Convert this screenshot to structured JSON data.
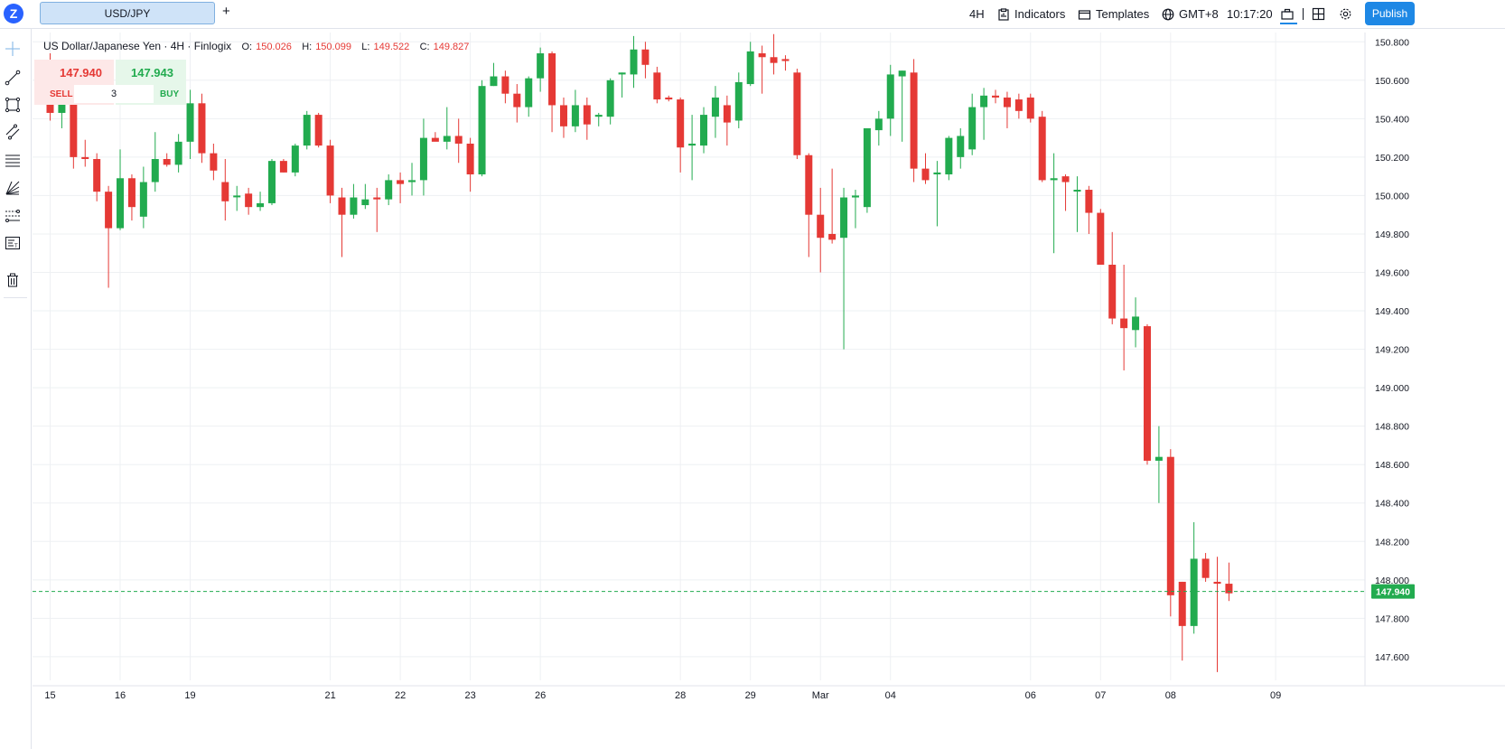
{
  "app": {
    "tab_label": "USD/JPY",
    "add_tab": "+"
  },
  "toolbar": {
    "interval": "4H",
    "indicators": "Indicators",
    "templates": "Templates",
    "timezone": "GMT+8",
    "clock": "10:17:20",
    "publish": "Publish"
  },
  "sidebar": {
    "tools": [
      "crosshair-icon",
      "trend-line-icon",
      "rectangle-icon",
      "parallel-channel-icon",
      "fib-retracement-icon",
      "gann-fan-icon",
      "pitchfork-icon",
      "text-note-icon",
      "trash-icon"
    ]
  },
  "legend": {
    "symbol": "US Dollar/Japanese Yen · 4H · Finlogix",
    "open_label": "O:",
    "open": "150.026",
    "high_label": "H:",
    "high": "150.099",
    "low_label": "L:",
    "low": "149.522",
    "close_label": "C:",
    "close": "149.827"
  },
  "trade": {
    "sell_price": "147.940",
    "buy_price": "147.943",
    "sell_label": "SELL",
    "buy_label": "BUY",
    "quantity": "3"
  },
  "colors": {
    "up": "#22ab4f",
    "down": "#e53935",
    "accent": "#1e88e5",
    "price_line": "#22ab4f",
    "grid": "#eef0f3"
  },
  "chart_data": {
    "type": "candlestick",
    "ylim": [
      147.5,
      150.85
    ],
    "y_ticks": [
      "150.800",
      "150.600",
      "150.400",
      "150.200",
      "150.000",
      "149.800",
      "149.600",
      "149.400",
      "149.200",
      "149.000",
      "148.800",
      "148.600",
      "148.400",
      "148.200",
      "148.000",
      "147.800",
      "147.600"
    ],
    "x_ticks": [
      "15",
      "16",
      "19",
      "21",
      "22",
      "23",
      "26",
      "28",
      "29",
      "Mar",
      "04",
      "06",
      "07",
      "08",
      "09"
    ],
    "last_price": "147.940",
    "grid": true,
    "candles": [
      [
        "2024-02-15 00:00",
        150.7,
        150.74,
        150.39,
        150.43
      ],
      [
        "2024-02-15 04:00",
        150.43,
        150.6,
        150.35,
        150.55
      ],
      [
        "2024-02-15 08:00",
        150.55,
        150.6,
        150.14,
        150.2
      ],
      [
        "2024-02-15 12:00",
        150.2,
        150.29,
        150.15,
        150.19
      ],
      [
        "2024-02-15 16:00",
        150.19,
        150.22,
        149.97,
        150.02
      ],
      [
        "2024-02-15 20:00",
        150.02,
        150.05,
        149.52,
        149.83
      ],
      [
        "2024-02-16 00:00",
        149.83,
        150.24,
        149.82,
        150.09
      ],
      [
        "2024-02-16 04:00",
        150.09,
        150.11,
        149.87,
        149.94
      ],
      [
        "2024-02-16 08:00",
        149.89,
        150.15,
        149.83,
        150.07
      ],
      [
        "2024-02-16 12:00",
        150.07,
        150.33,
        150.02,
        150.19
      ],
      [
        "2024-02-16 16:00",
        150.19,
        150.22,
        150.15,
        150.16
      ],
      [
        "2024-02-16 20:00",
        150.16,
        150.32,
        150.12,
        150.28
      ],
      [
        "2024-02-19 00:00",
        150.28,
        150.55,
        150.19,
        150.48
      ],
      [
        "2024-02-19 04:00",
        150.48,
        150.53,
        150.17,
        150.22
      ],
      [
        "2024-02-19 08:00",
        150.22,
        150.27,
        150.08,
        150.13
      ],
      [
        "2024-02-19 12:00",
        150.07,
        150.19,
        149.87,
        149.97
      ],
      [
        "2024-02-19 16:00",
        150.0,
        150.05,
        149.92,
        150.0
      ],
      [
        "2024-02-19 20:00",
        150.01,
        150.04,
        149.9,
        149.94
      ],
      [
        "2024-02-20 00:00",
        149.94,
        150.02,
        149.92,
        149.96
      ],
      [
        "2024-02-20 04:00",
        149.96,
        150.19,
        149.95,
        150.18
      ],
      [
        "2024-02-20 08:00",
        150.18,
        150.19,
        150.12,
        150.12
      ],
      [
        "2024-02-20 12:00",
        150.12,
        150.27,
        150.1,
        150.26
      ],
      [
        "2024-02-20 16:00",
        150.26,
        150.44,
        150.24,
        150.42
      ],
      [
        "2024-02-20 20:00",
        150.42,
        150.43,
        150.25,
        150.26
      ],
      [
        "2024-02-21 00:00",
        150.26,
        150.29,
        149.96,
        150.0
      ],
      [
        "2024-02-21 04:00",
        149.99,
        150.04,
        149.68,
        149.9
      ],
      [
        "2024-02-21 08:00",
        149.9,
        150.06,
        149.88,
        149.99
      ],
      [
        "2024-02-21 12:00",
        149.95,
        150.06,
        149.93,
        149.98
      ],
      [
        "2024-02-21 16:00",
        149.99,
        150.04,
        149.81,
        149.98
      ],
      [
        "2024-02-21 20:00",
        149.98,
        150.11,
        149.95,
        150.08
      ],
      [
        "2024-02-22 00:00",
        150.08,
        150.12,
        149.96,
        150.06
      ],
      [
        "2024-02-22 04:00",
        150.07,
        150.17,
        150.0,
        150.08
      ],
      [
        "2024-02-22 08:00",
        150.08,
        150.4,
        150.0,
        150.3
      ],
      [
        "2024-02-22 12:00",
        150.3,
        150.33,
        150.29,
        150.28
      ],
      [
        "2024-02-22 16:00",
        150.28,
        150.46,
        150.24,
        150.31
      ],
      [
        "2024-02-22 20:00",
        150.31,
        150.4,
        150.17,
        150.27
      ],
      [
        "2024-02-23 00:00",
        150.27,
        150.3,
        150.02,
        150.11
      ],
      [
        "2024-02-23 04:00",
        150.11,
        150.6,
        150.1,
        150.57
      ],
      [
        "2024-02-23 08:00",
        150.57,
        150.69,
        150.57,
        150.62
      ],
      [
        "2024-02-23 12:00",
        150.62,
        150.65,
        150.48,
        150.53
      ],
      [
        "2024-02-23 16:00",
        150.53,
        150.58,
        150.38,
        150.46
      ],
      [
        "2024-02-23 20:00",
        150.46,
        150.62,
        150.41,
        150.61
      ],
      [
        "2024-02-26 00:00",
        150.61,
        150.77,
        150.54,
        150.74
      ],
      [
        "2024-02-26 04:00",
        150.74,
        150.75,
        150.33,
        150.47
      ],
      [
        "2024-02-26 08:00",
        150.47,
        150.51,
        150.3,
        150.36
      ],
      [
        "2024-02-26 12:00",
        150.36,
        150.55,
        150.33,
        150.47
      ],
      [
        "2024-02-26 16:00",
        150.47,
        150.51,
        150.29,
        150.37
      ],
      [
        "2024-02-26 20:00",
        150.41,
        150.43,
        150.36,
        150.42
      ],
      [
        "2024-02-27 00:00",
        150.41,
        150.61,
        150.37,
        150.6
      ],
      [
        "2024-02-27 04:00",
        150.63,
        150.64,
        150.51,
        150.64
      ],
      [
        "2024-02-27 08:00",
        150.63,
        150.83,
        150.56,
        150.76
      ],
      [
        "2024-02-27 12:00",
        150.76,
        150.8,
        150.61,
        150.68
      ],
      [
        "2024-02-27 16:00",
        150.64,
        150.67,
        150.48,
        150.5
      ],
      [
        "2024-02-27 20:00",
        150.51,
        150.52,
        150.49,
        150.5
      ],
      [
        "2024-02-28 00:00",
        150.5,
        150.51,
        150.12,
        150.25
      ],
      [
        "2024-02-28 04:00",
        150.26,
        150.42,
        150.08,
        150.27
      ],
      [
        "2024-02-28 08:00",
        150.26,
        150.46,
        150.22,
        150.42
      ],
      [
        "2024-02-28 12:00",
        150.41,
        150.57,
        150.3,
        150.51
      ],
      [
        "2024-02-28 16:00",
        150.47,
        150.52,
        150.26,
        150.38
      ],
      [
        "2024-02-28 20:00",
        150.39,
        150.64,
        150.35,
        150.59
      ],
      [
        "2024-02-29 00:00",
        150.58,
        150.8,
        150.57,
        150.75
      ],
      [
        "2024-02-29 04:00",
        150.74,
        150.78,
        150.53,
        150.72
      ],
      [
        "2024-02-29 08:00",
        150.72,
        150.84,
        150.63,
        150.69
      ],
      [
        "2024-02-29 12:00",
        150.71,
        150.73,
        150.65,
        150.7
      ],
      [
        "2024-02-29 16:00",
        150.64,
        150.66,
        150.19,
        150.21
      ],
      [
        "2024-02-29 20:00",
        150.21,
        150.22,
        149.68,
        149.9
      ],
      [
        "2024-03-01 00:00",
        149.9,
        150.04,
        149.6,
        149.78
      ],
      [
        "2024-03-01 04:00",
        149.8,
        150.14,
        149.75,
        149.77
      ],
      [
        "2024-03-01 08:00",
        149.78,
        150.04,
        149.2,
        149.99
      ],
      [
        "2024-03-01 12:00",
        149.99,
        150.03,
        149.83,
        150.0
      ],
      [
        "2024-03-01 16:00",
        149.94,
        150.35,
        149.91,
        150.35
      ],
      [
        "2024-03-01 20:00",
        150.34,
        150.44,
        150.26,
        150.4
      ],
      [
        "2024-03-04 00:00",
        150.4,
        150.68,
        150.31,
        150.63
      ],
      [
        "2024-03-04 04:00",
        150.62,
        150.65,
        150.28,
        150.65
      ],
      [
        "2024-03-04 08:00",
        150.64,
        150.71,
        150.07,
        150.14
      ],
      [
        "2024-03-04 12:00",
        150.14,
        150.22,
        150.06,
        150.08
      ],
      [
        "2024-03-04 16:00",
        150.11,
        150.18,
        149.84,
        150.12
      ],
      [
        "2024-03-04 20:00",
        150.11,
        150.31,
        150.08,
        150.3
      ],
      [
        "2024-03-05 00:00",
        150.2,
        150.35,
        150.14,
        150.31
      ],
      [
        "2024-03-05 04:00",
        150.24,
        150.53,
        150.21,
        150.46
      ],
      [
        "2024-03-05 08:00",
        150.46,
        150.56,
        150.29,
        150.52
      ],
      [
        "2024-03-05 12:00",
        150.52,
        150.55,
        150.48,
        150.51
      ],
      [
        "2024-03-05 16:00",
        150.51,
        150.54,
        150.35,
        150.46
      ],
      [
        "2024-03-05 20:00",
        150.5,
        150.53,
        150.4,
        150.44
      ],
      [
        "2024-03-06 00:00",
        150.51,
        150.53,
        150.38,
        150.4
      ],
      [
        "2024-03-06 04:00",
        150.41,
        150.44,
        150.07,
        150.08
      ],
      [
        "2024-03-06 08:00",
        150.08,
        150.22,
        149.7,
        150.09
      ],
      [
        "2024-03-06 12:00",
        150.1,
        150.11,
        149.92,
        150.07
      ],
      [
        "2024-03-06 16:00",
        150.03,
        150.1,
        149.81,
        150.03
      ],
      [
        "2024-03-06 20:00",
        150.03,
        150.05,
        149.8,
        149.91
      ],
      [
        "2024-03-07 00:00",
        149.91,
        149.93,
        149.64,
        149.64
      ],
      [
        "2024-03-07 04:00",
        149.64,
        149.81,
        149.33,
        149.36
      ],
      [
        "2024-03-07 08:00",
        149.36,
        149.64,
        149.09,
        149.31
      ],
      [
        "2024-03-07 12:00",
        149.3,
        149.47,
        149.21,
        149.37
      ],
      [
        "2024-03-07 16:00",
        149.32,
        149.33,
        148.6,
        148.62
      ],
      [
        "2024-03-07 20:00",
        148.62,
        148.8,
        148.4,
        148.64
      ],
      [
        "2024-03-08 00:00",
        148.64,
        148.68,
        147.81,
        147.92
      ],
      [
        "2024-03-08 04:00",
        147.99,
        147.99,
        147.58,
        147.76
      ],
      [
        "2024-03-08 08:00",
        147.76,
        148.3,
        147.72,
        148.11
      ],
      [
        "2024-03-08 12:00",
        148.11,
        148.14,
        147.99,
        148.01
      ],
      [
        "2024-03-08 16:00",
        147.99,
        148.12,
        147.52,
        147.98
      ],
      [
        "2024-03-08 20:00",
        147.98,
        148.09,
        147.89,
        147.93
      ]
    ]
  }
}
